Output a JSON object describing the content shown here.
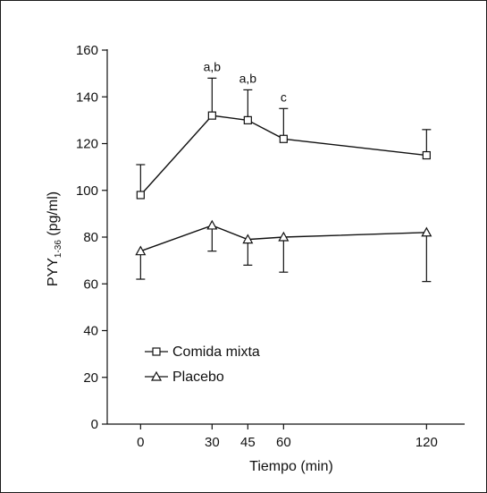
{
  "chart_data": {
    "type": "line",
    "xlabel": "Tiempo (min)",
    "ylabel": {
      "main": "PYY",
      "sub": "1-36",
      "unit": " (pg/ml)"
    },
    "xlim": [
      -14,
      136
    ],
    "ylim": [
      0,
      160
    ],
    "x": [
      0,
      30,
      45,
      60,
      120
    ],
    "x_ticks": [
      0,
      30,
      45,
      60,
      120
    ],
    "y_ticks": [
      0,
      20,
      40,
      60,
      80,
      100,
      120,
      140,
      160
    ],
    "grid": false,
    "legend_position": "lower-left",
    "series": [
      {
        "name": "Comida mixta",
        "marker": "square",
        "error_direction": "up",
        "values": [
          98,
          132,
          130,
          122,
          115
        ],
        "errors": [
          13,
          16,
          13,
          13,
          11
        ]
      },
      {
        "name": "Placebo",
        "marker": "triangle",
        "error_direction": "down",
        "values": [
          74,
          85,
          79,
          80,
          82
        ],
        "errors": [
          12,
          11,
          11,
          15,
          21
        ]
      }
    ],
    "annotations": [
      {
        "x": 30,
        "text": "a,b"
      },
      {
        "x": 45,
        "text": "a,b"
      },
      {
        "x": 60,
        "text": "c"
      }
    ]
  }
}
